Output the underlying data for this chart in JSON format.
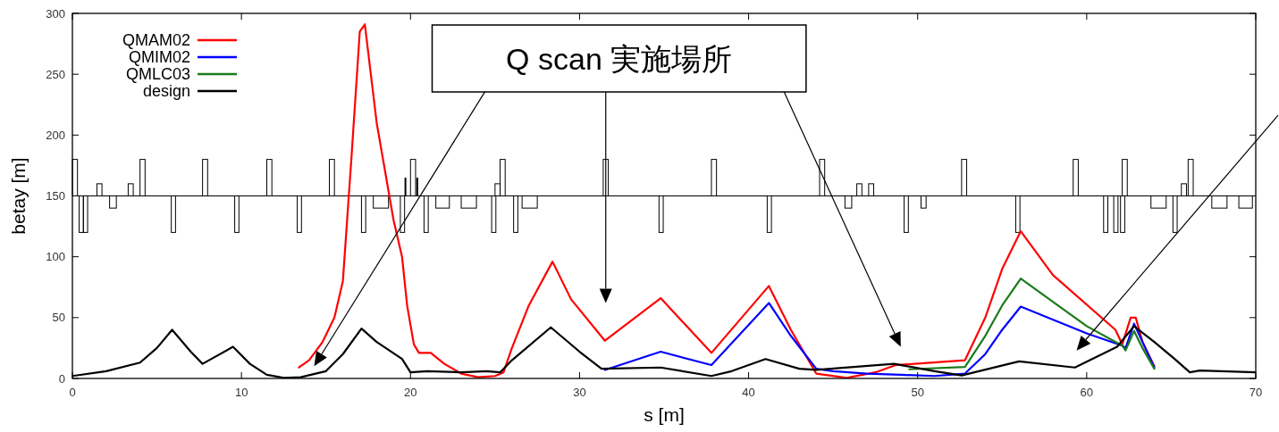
{
  "chart_data": {
    "type": "line",
    "xlabel": "s [m]",
    "ylabel": "betay [m]",
    "xlim": [
      0,
      70
    ],
    "ylim": [
      0,
      300
    ],
    "xticks": [
      0,
      10,
      20,
      30,
      40,
      50,
      60,
      70
    ],
    "yticks": [
      0,
      50,
      100,
      150,
      200,
      250,
      300
    ],
    "legend": "top left",
    "line_style": "solid",
    "annotations": [
      "Q scan 実施場所"
    ],
    "series": [
      {
        "name": "QMAM02",
        "color": "#ff0000",
        "x": [
          13.4,
          14,
          14.8,
          15.5,
          16,
          16.5,
          17,
          17.3,
          18,
          19,
          19.5,
          19.8,
          20.2,
          20.5,
          21.2,
          22,
          23,
          24,
          25,
          25.5,
          26,
          27,
          28.4,
          29.5,
          31.5,
          34.8,
          37.8,
          41.2,
          42.5,
          44,
          45.8,
          47.5,
          48.7,
          52.8,
          54,
          55,
          56.1,
          58,
          61.7,
          62.1,
          62.6,
          62.9,
          63.3,
          64
        ],
        "values": [
          9,
          15,
          30,
          50,
          80,
          180,
          285,
          291,
          210,
          130,
          100,
          60,
          28,
          21,
          21,
          12,
          4,
          1,
          2,
          5,
          25,
          60,
          96,
          65,
          31,
          66,
          21,
          76,
          40,
          4,
          0.5,
          5,
          11,
          15,
          50,
          90,
          121,
          85,
          40,
          28,
          50,
          50,
          30,
          10
        ]
      },
      {
        "name": "QMIM02",
        "color": "#0000ff",
        "x": [
          31.5,
          34.8,
          37.8,
          41.2,
          42.5,
          44,
          45,
          47,
          49,
          51,
          52.8,
          54,
          55,
          56.1,
          60,
          62.1,
          62.3,
          62.8,
          63.3,
          64
        ],
        "values": [
          7,
          22,
          11,
          62,
          35,
          8,
          6,
          4,
          3,
          2,
          4,
          20,
          40,
          59,
          37,
          27,
          25,
          45,
          30,
          9
        ]
      },
      {
        "name": "QMLC03",
        "color": "#1a7a1a",
        "x": [
          49.5,
          52.8,
          54,
          55,
          56.1,
          58,
          60,
          62.1,
          62.3,
          62.8,
          63.3,
          64
        ],
        "values": [
          7.5,
          9.5,
          35,
          60,
          82,
          63,
          43,
          27,
          23,
          39,
          25,
          8
        ]
      },
      {
        "name": "design",
        "color": "#000000",
        "x": [
          0,
          2,
          4,
          5,
          5.9,
          7,
          7.7,
          9.5,
          10.5,
          11.5,
          12.5,
          13.5,
          15,
          16,
          17.1,
          18,
          19.5,
          20,
          21,
          23,
          24.5,
          25.3,
          26,
          28.3,
          30,
          31.3,
          34.8,
          37.8,
          39,
          41,
          43,
          44,
          48.6,
          51,
          52.6,
          56,
          59.3,
          61.8,
          62.8,
          64,
          65.2,
          66.1,
          66.7,
          70
        ],
        "values": [
          2,
          6,
          13,
          25,
          40,
          22,
          12,
          26,
          12,
          3,
          0.5,
          1,
          6,
          20,
          41,
          30,
          16,
          5,
          6,
          5,
          6,
          5,
          15,
          42,
          22,
          8,
          9,
          2,
          6,
          16,
          8,
          7,
          12,
          6,
          2.5,
          14,
          9,
          26,
          43,
          30,
          16,
          5,
          6.5,
          5
        ]
      }
    ]
  }
}
